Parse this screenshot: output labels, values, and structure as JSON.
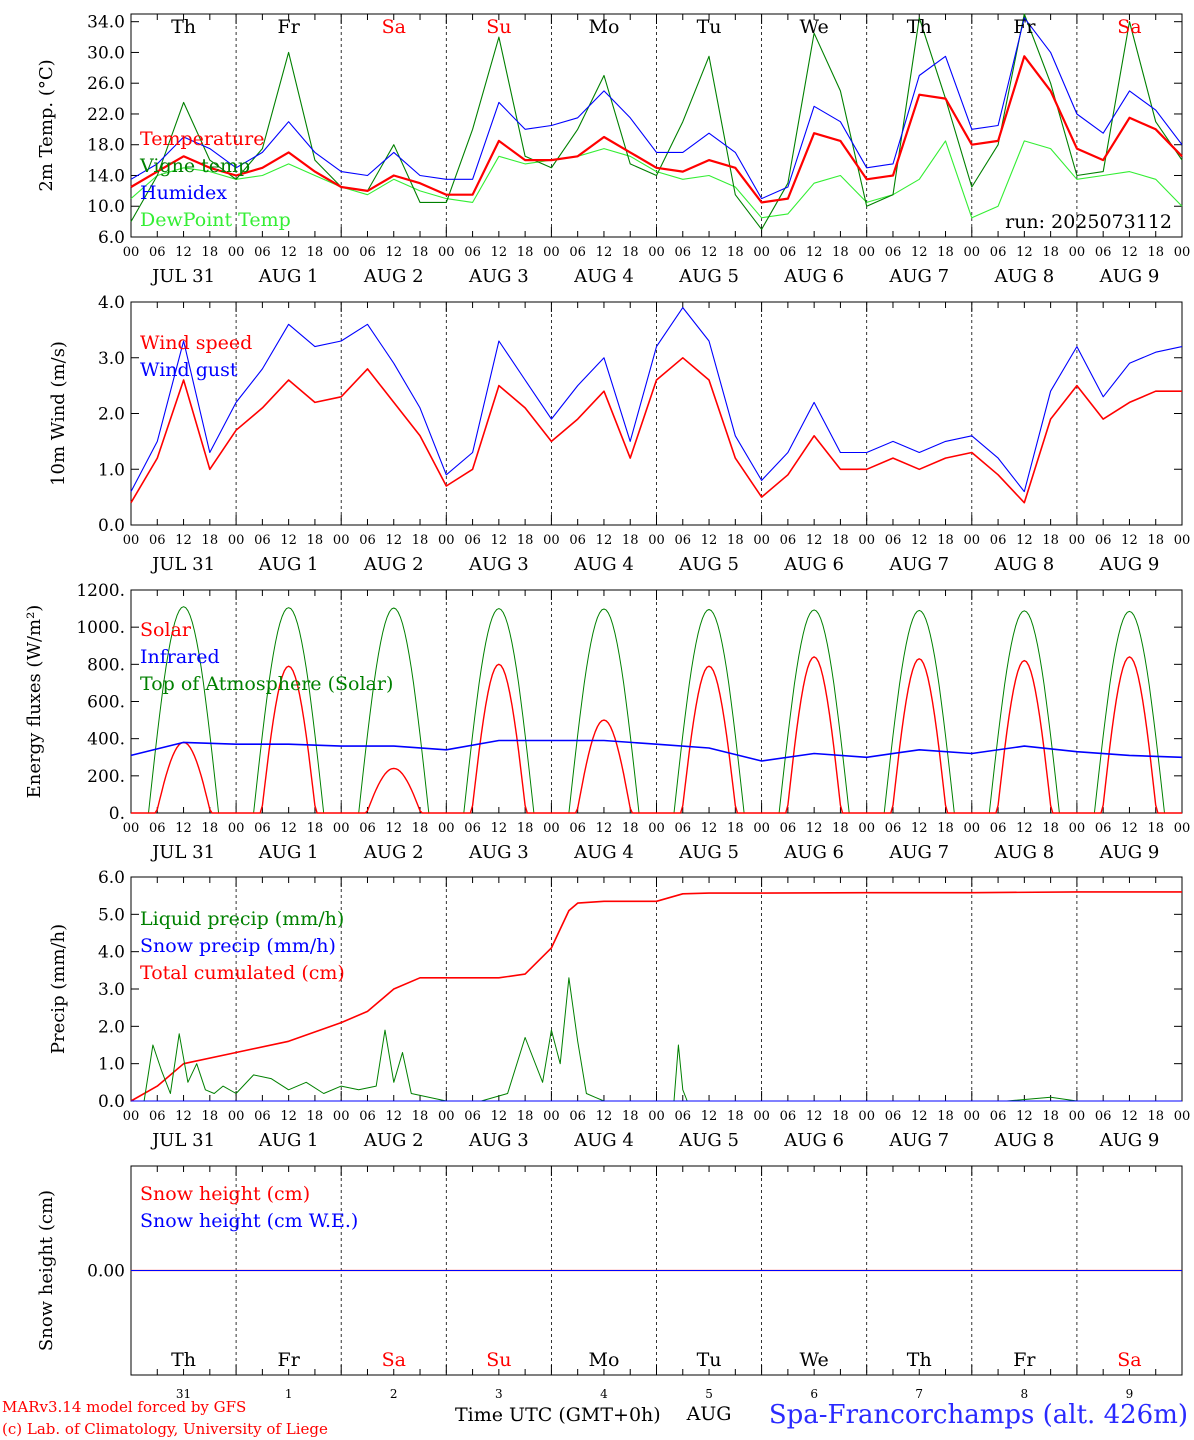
{
  "footer": {
    "model": "MARv3.14 model forced by GFS",
    "lab": "(c) Lab. of Climatology, University of Liege",
    "time_label": "Time UTC (GMT+0h)",
    "station": "Spa-Francorchamps (alt. 426m)",
    "aug_label": "AUG"
  },
  "colors": {
    "red": "#ff0000",
    "blue": "#0000ff",
    "dark_green": "#008000",
    "light_green": "#33ee33",
    "weekend": "#ff0000"
  },
  "days": [
    {
      "dow": "Th",
      "date": "JUL 31",
      "num": "31",
      "weekend": false
    },
    {
      "dow": "Fr",
      "date": "AUG  1",
      "num": "1",
      "weekend": false
    },
    {
      "dow": "Sa",
      "date": "AUG  2",
      "num": "2",
      "weekend": true
    },
    {
      "dow": "Su",
      "date": "AUG  3",
      "num": "3",
      "weekend": true
    },
    {
      "dow": "Mo",
      "date": "AUG  4",
      "num": "4",
      "weekend": false
    },
    {
      "dow": "Tu",
      "date": "AUG  5",
      "num": "5",
      "weekend": false
    },
    {
      "dow": "We",
      "date": "AUG  6",
      "num": "6",
      "weekend": false
    },
    {
      "dow": "Th",
      "date": "AUG  7",
      "num": "7",
      "weekend": false
    },
    {
      "dow": "Fr",
      "date": "AUG  8",
      "num": "8",
      "weekend": false
    },
    {
      "dow": "Sa",
      "date": "AUG  9",
      "num": "9",
      "weekend": true
    }
  ],
  "hour_labels": [
    "00",
    "06",
    "12",
    "18"
  ],
  "end_hour_label": "00",
  "chart_data": [
    {
      "id": "temperature",
      "type": "line",
      "ylabel": "2m Temp. (°C)",
      "ylim": [
        6.0,
        35.0
      ],
      "yticks": [
        6.0,
        10.0,
        14.0,
        18.0,
        22.0,
        26.0,
        30.0,
        34.0
      ],
      "ytick_labels": [
        "6.0",
        "10.0",
        "14.0",
        "18.0",
        "22.0",
        "26.0",
        "30.0",
        "34.0"
      ],
      "show_dow": true,
      "annotation": "run: 2025073112",
      "legend": [
        "Temperature",
        "Vigne temp",
        "Humidex",
        "DewPoint Temp"
      ],
      "series": [
        {
          "name": "Temperature",
          "color": "#ff0000",
          "width": 2.2,
          "x": [
            0,
            6,
            12,
            18,
            24,
            30,
            36,
            42,
            48,
            54,
            60,
            66,
            72,
            78,
            84,
            90,
            96,
            102,
            108,
            114,
            120,
            126,
            132,
            138,
            144,
            150,
            156,
            162,
            168,
            174,
            180,
            186,
            192,
            198,
            204,
            210,
            216,
            222,
            228,
            234,
            240
          ],
          "y": [
            12.5,
            14.5,
            16.5,
            15.0,
            14.0,
            15.0,
            17.0,
            14.5,
            12.5,
            12.0,
            14.0,
            13.0,
            11.5,
            11.5,
            18.5,
            16.0,
            16.0,
            16.5,
            19.0,
            17.0,
            15.0,
            14.5,
            16.0,
            15.0,
            10.5,
            11.0,
            19.5,
            18.5,
            13.5,
            14.0,
            24.5,
            24.0,
            18.0,
            18.5,
            29.5,
            25.0,
            17.5,
            16.0,
            21.5,
            20.0,
            16.5
          ]
        },
        {
          "name": "Vigne temp",
          "color": "#008000",
          "width": 1.1,
          "x": [
            0,
            6,
            12,
            18,
            24,
            30,
            36,
            42,
            48,
            54,
            60,
            66,
            72,
            78,
            84,
            90,
            96,
            102,
            108,
            114,
            120,
            126,
            132,
            138,
            144,
            150,
            156,
            162,
            168,
            174,
            180,
            186,
            192,
            198,
            204,
            210,
            216,
            222,
            228,
            234,
            240
          ],
          "y": [
            8.0,
            14.0,
            23.5,
            16.0,
            13.5,
            17.5,
            30.0,
            16.0,
            12.5,
            12.0,
            18.0,
            10.5,
            10.5,
            20.0,
            32.0,
            16.5,
            15.0,
            20.0,
            27.0,
            15.5,
            14.0,
            21.0,
            29.5,
            11.5,
            7.0,
            13.0,
            32.5,
            25.0,
            10.0,
            11.5,
            34.5,
            24.0,
            12.5,
            18.0,
            35.0,
            26.0,
            14.0,
            14.5,
            34.0,
            21.0,
            16.0
          ]
        },
        {
          "name": "Humidex",
          "color": "#0000ff",
          "width": 1.1,
          "x": [
            0,
            6,
            12,
            18,
            24,
            30,
            36,
            42,
            48,
            54,
            60,
            66,
            72,
            78,
            84,
            90,
            96,
            102,
            108,
            114,
            120,
            126,
            132,
            138,
            144,
            150,
            156,
            162,
            168,
            174,
            180,
            186,
            192,
            198,
            204,
            210,
            216,
            222,
            228,
            234,
            240
          ],
          "y": [
            13.5,
            15.5,
            19.0,
            17.5,
            15.0,
            17.0,
            21.0,
            17.0,
            14.5,
            14.0,
            17.0,
            14.0,
            13.5,
            13.5,
            23.5,
            20.0,
            20.5,
            21.5,
            25.0,
            21.5,
            17.0,
            17.0,
            19.5,
            17.0,
            11.0,
            12.5,
            23.0,
            21.0,
            15.0,
            15.5,
            27.0,
            29.5,
            20.0,
            20.5,
            34.5,
            30.0,
            22.0,
            19.5,
            25.0,
            22.5,
            18.0
          ]
        },
        {
          "name": "DewPoint Temp",
          "color": "#33ee33",
          "width": 1.1,
          "x": [
            0,
            6,
            12,
            18,
            24,
            30,
            36,
            42,
            48,
            54,
            60,
            66,
            72,
            78,
            84,
            90,
            96,
            102,
            108,
            114,
            120,
            126,
            132,
            138,
            144,
            150,
            156,
            162,
            168,
            174,
            180,
            186,
            192,
            198,
            204,
            210,
            216,
            222,
            228,
            234,
            240
          ],
          "y": [
            11.0,
            14.0,
            15.0,
            14.5,
            13.5,
            14.0,
            15.5,
            14.0,
            12.5,
            11.5,
            13.5,
            12.0,
            11.0,
            10.5,
            16.5,
            15.5,
            16.0,
            16.5,
            17.5,
            16.5,
            14.5,
            13.5,
            14.0,
            12.5,
            8.5,
            9.0,
            13.0,
            14.0,
            10.5,
            11.5,
            13.5,
            18.5,
            8.5,
            10.0,
            18.5,
            17.5,
            13.5,
            14.0,
            14.5,
            13.5,
            10.0
          ]
        }
      ]
    },
    {
      "id": "wind",
      "type": "line",
      "ylabel": "10m Wind (m/s)",
      "ylim": [
        0.0,
        4.0
      ],
      "yticks": [
        0.0,
        1.0,
        2.0,
        3.0,
        4.0
      ],
      "ytick_labels": [
        "0.0",
        "1.0",
        "2.0",
        "3.0",
        "4.0"
      ],
      "show_dow": false,
      "legend": [
        "Wind speed",
        "Wind gust"
      ],
      "series": [
        {
          "name": "Wind speed",
          "color": "#ff0000",
          "width": 1.6,
          "x": [
            0,
            6,
            12,
            18,
            24,
            30,
            36,
            42,
            48,
            54,
            60,
            66,
            72,
            78,
            84,
            90,
            96,
            102,
            108,
            114,
            120,
            126,
            132,
            138,
            144,
            150,
            156,
            162,
            168,
            174,
            180,
            186,
            192,
            198,
            204,
            210,
            216,
            222,
            228,
            234,
            240
          ],
          "y": [
            0.4,
            1.2,
            2.6,
            1.0,
            1.7,
            2.1,
            2.6,
            2.2,
            2.3,
            2.8,
            2.2,
            1.6,
            0.7,
            1.0,
            2.5,
            2.1,
            1.5,
            1.9,
            2.4,
            1.2,
            2.6,
            3.0,
            2.6,
            1.2,
            0.5,
            0.9,
            1.6,
            1.0,
            1.0,
            1.2,
            1.0,
            1.2,
            1.3,
            0.9,
            0.4,
            1.9,
            2.5,
            1.9,
            2.2,
            2.4,
            2.4
          ]
        },
        {
          "name": "Wind gust",
          "color": "#0000ff",
          "width": 1.1,
          "x": [
            0,
            6,
            12,
            18,
            24,
            30,
            36,
            42,
            48,
            54,
            60,
            66,
            72,
            78,
            84,
            90,
            96,
            102,
            108,
            114,
            120,
            126,
            132,
            138,
            144,
            150,
            156,
            162,
            168,
            174,
            180,
            186,
            192,
            198,
            204,
            210,
            216,
            222,
            228,
            234,
            240
          ],
          "y": [
            0.6,
            1.5,
            3.3,
            1.3,
            2.2,
            2.8,
            3.6,
            3.2,
            3.3,
            3.6,
            2.9,
            2.1,
            0.9,
            1.3,
            3.3,
            2.6,
            1.9,
            2.5,
            3.0,
            1.5,
            3.2,
            3.9,
            3.3,
            1.6,
            0.8,
            1.3,
            2.2,
            1.3,
            1.3,
            1.5,
            1.3,
            1.5,
            1.6,
            1.2,
            0.6,
            2.4,
            3.2,
            2.3,
            2.9,
            3.1,
            3.2
          ]
        }
      ]
    },
    {
      "id": "energy",
      "type": "line",
      "ylabel": "Energy fluxes (W/m²)",
      "ylim": [
        0,
        1200
      ],
      "yticks": [
        0,
        200,
        400,
        600,
        800,
        1000,
        1200
      ],
      "ytick_labels": [
        "0.",
        "200.",
        "400.",
        "600.",
        "800.",
        "1000.",
        "1200."
      ],
      "show_dow": false,
      "legend": [
        "Solar",
        "Infrared",
        "Top of Atmosphere (Solar)"
      ],
      "series": [
        {
          "name": "Top of Atmosphere (Solar)",
          "color": "#008000",
          "width": 1.0,
          "diurnal_peak": [
            1110,
            1105,
            1103,
            1100,
            1098,
            1095,
            1093,
            1090,
            1088,
            1085
          ]
        },
        {
          "name": "Solar",
          "color": "#ff0000",
          "width": 1.4,
          "diurnal_peak": [
            380,
            790,
            240,
            800,
            500,
            790,
            840,
            830,
            820,
            840
          ]
        },
        {
          "name": "Infrared",
          "color": "#0000ff",
          "width": 1.6,
          "x": [
            0,
            12,
            24,
            36,
            48,
            60,
            72,
            84,
            96,
            108,
            120,
            132,
            144,
            156,
            168,
            180,
            192,
            204,
            216,
            228,
            240
          ],
          "y": [
            310,
            380,
            370,
            370,
            360,
            360,
            340,
            390,
            390,
            390,
            370,
            350,
            280,
            320,
            300,
            340,
            320,
            360,
            330,
            310,
            300
          ]
        }
      ]
    },
    {
      "id": "precip",
      "type": "line",
      "ylabel": "Precip (mm/h)",
      "ylim": [
        0.0,
        6.0
      ],
      "yticks": [
        0.0,
        1.0,
        2.0,
        3.0,
        4.0,
        5.0,
        6.0
      ],
      "ytick_labels": [
        "0.0",
        "1.0",
        "2.0",
        "3.0",
        "4.0",
        "5.0",
        "6.0"
      ],
      "show_dow": false,
      "legend": [
        "Liquid precip (mm/h)",
        "Snow precip (mm/h)",
        "Total cumulated (cm)"
      ],
      "series": [
        {
          "name": "Total cumulated (cm)",
          "color": "#ff0000",
          "width": 1.6,
          "x": [
            0,
            6,
            12,
            24,
            36,
            48,
            54,
            60,
            66,
            72,
            84,
            90,
            96,
            100,
            102,
            108,
            120,
            126,
            132,
            144,
            168,
            192,
            216,
            240
          ],
          "y": [
            0.0,
            0.4,
            1.0,
            1.3,
            1.6,
            2.1,
            2.4,
            3.0,
            3.3,
            3.3,
            3.3,
            3.4,
            4.1,
            5.1,
            5.3,
            5.35,
            5.35,
            5.55,
            5.57,
            5.57,
            5.58,
            5.58,
            5.6,
            5.6
          ]
        },
        {
          "name": "Liquid precip (mm/h)",
          "color": "#008000",
          "width": 1.0,
          "x": [
            0,
            3,
            5,
            7,
            9,
            11,
            13,
            15,
            17,
            19,
            21,
            24,
            28,
            32,
            36,
            40,
            44,
            48,
            52,
            56,
            58,
            60,
            62,
            64,
            68,
            72,
            80,
            86,
            90,
            94,
            96,
            98,
            100,
            102,
            104,
            106,
            108,
            116,
            124,
            125,
            126,
            127,
            128,
            132,
            140,
            200,
            210,
            216,
            240
          ],
          "y": [
            0.0,
            0.0,
            1.5,
            0.8,
            0.2,
            1.8,
            0.5,
            1.0,
            0.3,
            0.2,
            0.4,
            0.2,
            0.7,
            0.6,
            0.3,
            0.5,
            0.2,
            0.4,
            0.3,
            0.4,
            1.9,
            0.5,
            1.3,
            0.2,
            0.1,
            0.0,
            0.0,
            0.2,
            1.7,
            0.5,
            1.9,
            1.0,
            3.3,
            1.6,
            0.2,
            0.1,
            0.0,
            0.0,
            0.0,
            1.5,
            0.3,
            0.0,
            0.0,
            0.0,
            0.0,
            0.0,
            0.1,
            0.0,
            0.0
          ]
        },
        {
          "name": "Snow precip (mm/h)",
          "color": "#0000ff",
          "width": 1.0,
          "x": [
            0,
            240
          ],
          "y": [
            0,
            0
          ]
        }
      ]
    },
    {
      "id": "snow",
      "type": "line",
      "ylabel": "Snow height (cm)",
      "ylim": [
        -1.0,
        1.0
      ],
      "yticks": [
        0.0
      ],
      "ytick_labels": [
        "0.00"
      ],
      "show_dow": true,
      "legend": [
        "Snow height (cm)",
        "Snow height (cm W.E.)"
      ],
      "series": [
        {
          "name": "Snow height (cm)",
          "color": "#ff0000",
          "width": 1.2,
          "x": [
            0,
            240
          ],
          "y": [
            0,
            0
          ]
        },
        {
          "name": "Snow height (cm W.E.)",
          "color": "#0000ff",
          "width": 1.0,
          "x": [
            0,
            240
          ],
          "y": [
            0,
            0
          ]
        }
      ]
    }
  ]
}
